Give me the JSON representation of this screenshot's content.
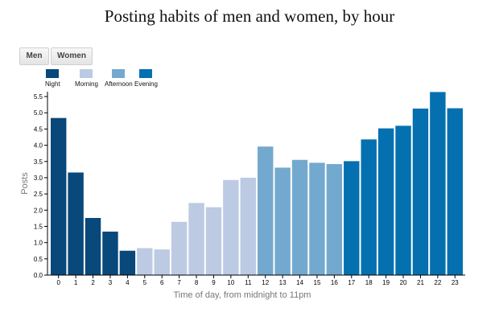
{
  "chart_data": {
    "type": "bar",
    "title": "Posting habits of men and women, by hour",
    "xlabel": "Time of day, from midnight to 11pm",
    "ylabel": "Posts",
    "ylim": [
      0,
      5.65
    ],
    "yticks": [
      "0.0",
      "0.5",
      "1.0",
      "1.5",
      "2.0",
      "2.5",
      "3.0",
      "3.5",
      "4.0",
      "4.5",
      "5.0",
      "5.5"
    ],
    "categories": [
      "0",
      "1",
      "2",
      "3",
      "4",
      "5",
      "6",
      "7",
      "8",
      "9",
      "10",
      "11",
      "12",
      "13",
      "14",
      "15",
      "16",
      "17",
      "18",
      "19",
      "20",
      "21",
      "22",
      "23"
    ],
    "values": [
      4.84,
      3.16,
      1.76,
      1.34,
      0.75,
      0.83,
      0.79,
      1.64,
      2.22,
      2.09,
      2.93,
      3.0,
      3.96,
      3.31,
      3.55,
      3.46,
      3.42,
      3.51,
      4.18,
      4.52,
      4.6,
      5.13,
      5.64,
      5.14
    ],
    "series_name": "Men",
    "periods": [
      {
        "name": "Night",
        "color": "#08487a",
        "hours": [
          0,
          1,
          2,
          3,
          4
        ]
      },
      {
        "name": "Morning",
        "color": "#bccae3",
        "hours": [
          5,
          6,
          7,
          8,
          9,
          10,
          11
        ]
      },
      {
        "name": "Afternoon",
        "color": "#74a9cf",
        "hours": [
          12,
          13,
          14,
          15,
          16
        ]
      },
      {
        "name": "Evening",
        "color": "#0570b0",
        "hours": [
          17,
          18,
          19,
          20,
          21,
          22,
          23
        ]
      }
    ]
  },
  "toggles": {
    "men_label": "Men",
    "women_label": "Women"
  }
}
